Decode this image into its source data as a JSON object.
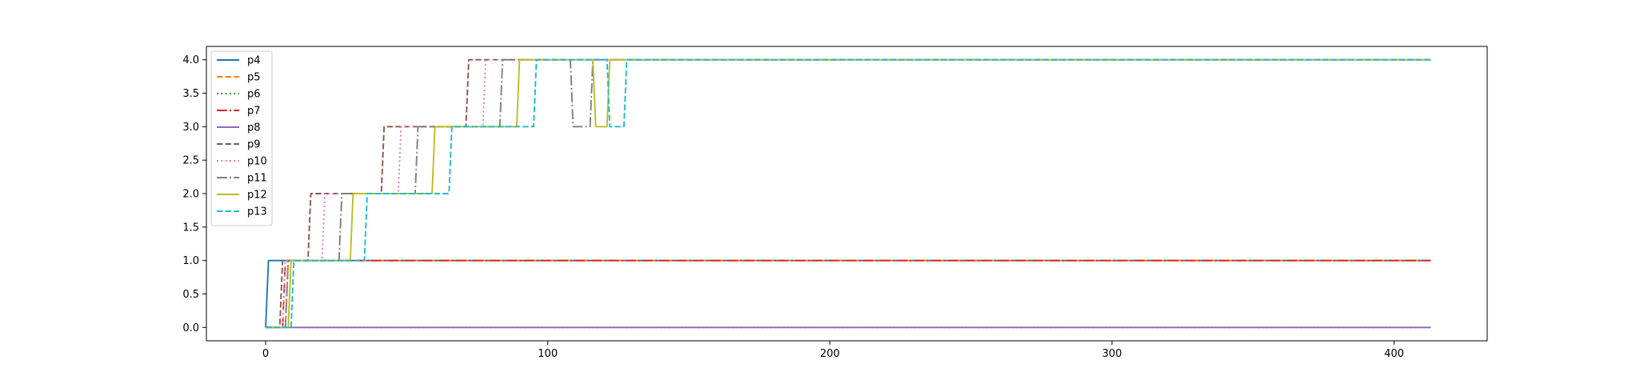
{
  "chart_data": {
    "type": "line",
    "title": "",
    "xlabel": "",
    "ylabel": "",
    "xlim": [
      -21,
      433
    ],
    "ylim": [
      -0.2,
      4.2
    ],
    "x_ticks": [
      0,
      100,
      200,
      300,
      400
    ],
    "y_ticks": [
      0.0,
      0.5,
      1.0,
      1.5,
      2.0,
      2.5,
      3.0,
      3.5,
      4.0
    ],
    "x_tick_labels": [
      "0",
      "100",
      "200",
      "300",
      "400"
    ],
    "y_tick_labels": [
      "0.0",
      "0.5",
      "1.0",
      "1.5",
      "2.0",
      "2.5",
      "3.0",
      "3.5",
      "4.0"
    ],
    "grid": false,
    "legend_position": "upper-left",
    "series": [
      {
        "name": "p4",
        "color": "#1f77b4",
        "dash": "solid",
        "x": [
          0,
          1,
          413
        ],
        "y": [
          0,
          1,
          1
        ]
      },
      {
        "name": "p5",
        "color": "#ff7f0e",
        "dash": "dashed",
        "x": [
          0,
          7,
          8,
          413
        ],
        "y": [
          0,
          0,
          1,
          1
        ]
      },
      {
        "name": "p6",
        "color": "#2ca02c",
        "dash": "dotted",
        "x": [
          0,
          413
        ],
        "y": [
          0,
          0
        ]
      },
      {
        "name": "p7",
        "color": "#d62728",
        "dash": "dashdot",
        "x": [
          0,
          6,
          7,
          413
        ],
        "y": [
          0,
          0,
          1,
          1
        ]
      },
      {
        "name": "p8",
        "color": "#9467bd",
        "dash": "solid",
        "x": [
          0,
          413
        ],
        "y": [
          0,
          0
        ]
      },
      {
        "name": "p9",
        "color": "#8c564b",
        "dash": "dashed",
        "x": [
          0,
          5,
          6,
          15,
          16,
          41,
          42,
          71,
          72,
          413
        ],
        "y": [
          0,
          0,
          1,
          1,
          2,
          2,
          3,
          3,
          4,
          4
        ]
      },
      {
        "name": "p10",
        "color": "#e377c2",
        "dash": "dotted",
        "x": [
          0,
          6,
          7,
          20,
          21,
          47,
          48,
          77,
          78,
          413
        ],
        "y": [
          0,
          0,
          1,
          1,
          2,
          2,
          3,
          3,
          4,
          4
        ]
      },
      {
        "name": "p11",
        "color": "#7f7f7f",
        "dash": "dashdot",
        "x": [
          0,
          7,
          8,
          26,
          27,
          53,
          54,
          83,
          84,
          108,
          109,
          115,
          116,
          413
        ],
        "y": [
          0,
          0,
          1,
          1,
          2,
          2,
          3,
          3,
          4,
          4,
          3,
          3,
          4,
          4
        ]
      },
      {
        "name": "p12",
        "color": "#bcbd22",
        "dash": "solid",
        "x": [
          0,
          8,
          9,
          30,
          31,
          59,
          60,
          89,
          90,
          116,
          117,
          121,
          122,
          413
        ],
        "y": [
          0,
          0,
          1,
          1,
          2,
          2,
          3,
          3,
          4,
          4,
          3,
          3,
          4,
          4
        ]
      },
      {
        "name": "p13",
        "color": "#17becf",
        "dash": "dashed",
        "x": [
          0,
          9,
          10,
          35,
          36,
          65,
          66,
          95,
          96,
          121,
          122,
          127,
          128,
          413
        ],
        "y": [
          0,
          0,
          1,
          1,
          2,
          2,
          3,
          3,
          4,
          4,
          3,
          3,
          4,
          4
        ]
      }
    ]
  }
}
